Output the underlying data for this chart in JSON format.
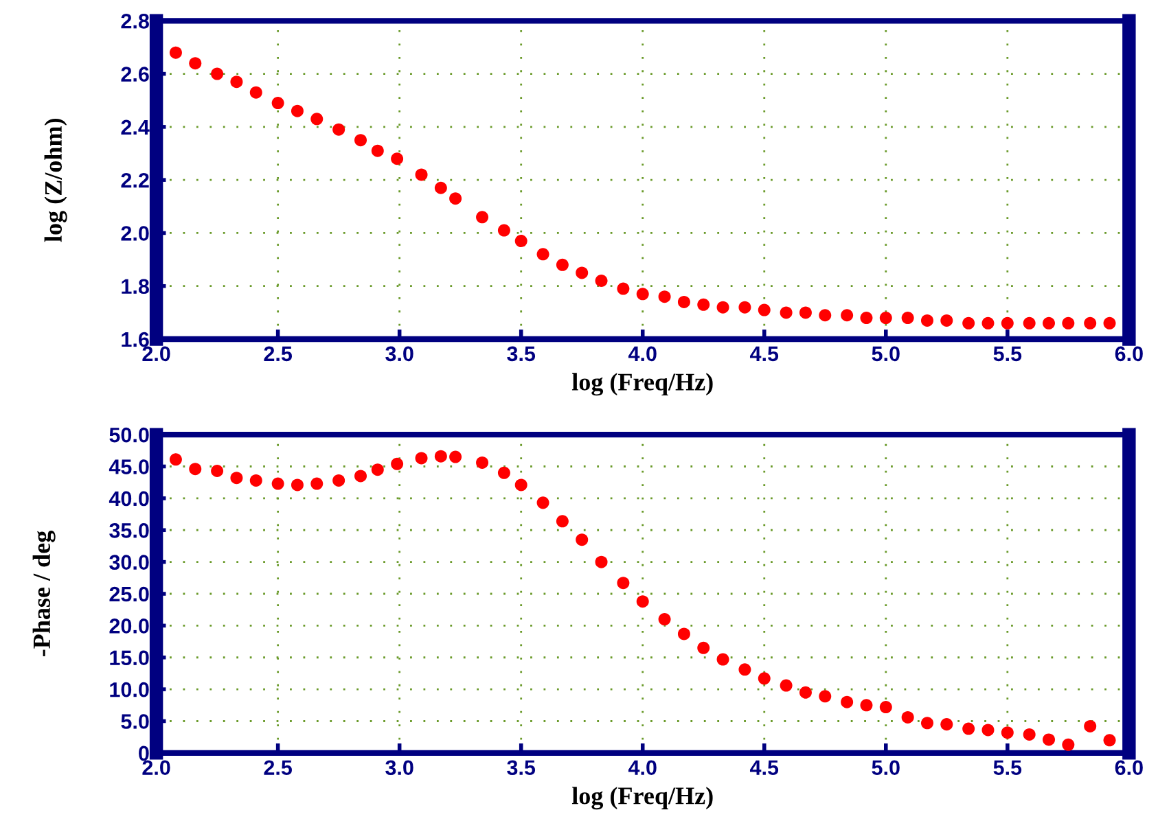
{
  "chart_data": [
    {
      "type": "scatter",
      "xlabel": "log (Freq/Hz)",
      "ylabel": "log (Z/ohm)",
      "marker": "circle",
      "grid": true,
      "xlim": [
        2.0,
        6.0
      ],
      "ylim": [
        1.6,
        2.8
      ],
      "xticks": [
        {
          "value": 2.0,
          "label": "2.0"
        },
        {
          "value": 2.5,
          "label": "2.5"
        },
        {
          "value": 3.0,
          "label": "3.0"
        },
        {
          "value": 3.5,
          "label": "3.5"
        },
        {
          "value": 4.0,
          "label": "4.0"
        },
        {
          "value": 4.5,
          "label": "4.5"
        },
        {
          "value": 5.0,
          "label": "5.0"
        },
        {
          "value": 5.5,
          "label": "5.5"
        },
        {
          "value": 6.0,
          "label": "6.0"
        }
      ],
      "yticks": [
        {
          "value": 1.6,
          "label": "1.6"
        },
        {
          "value": 1.8,
          "label": "1.8"
        },
        {
          "value": 2.0,
          "label": "2.0"
        },
        {
          "value": 2.2,
          "label": "2.2"
        },
        {
          "value": 2.4,
          "label": "2.4"
        },
        {
          "value": 2.6,
          "label": "2.6"
        },
        {
          "value": 2.8,
          "label": "2.8"
        }
      ],
      "series": [
        {
          "color": "#ff0000",
          "x": [
            2.08,
            2.16,
            2.25,
            2.33,
            2.41,
            2.5,
            2.58,
            2.66,
            2.75,
            2.84,
            2.91,
            2.99,
            3.09,
            3.17,
            3.23,
            3.34,
            3.43,
            3.5,
            3.59,
            3.67,
            3.75,
            3.83,
            3.92,
            4.0,
            4.09,
            4.17,
            4.25,
            4.33,
            4.42,
            4.5,
            4.59,
            4.67,
            4.75,
            4.84,
            4.92,
            5.0,
            5.09,
            5.17,
            5.25,
            5.34,
            5.42,
            5.5,
            5.59,
            5.67,
            5.75,
            5.84,
            5.92
          ],
          "values": [
            2.68,
            2.64,
            2.6,
            2.57,
            2.53,
            2.49,
            2.46,
            2.43,
            2.39,
            2.35,
            2.31,
            2.28,
            2.22,
            2.17,
            2.13,
            2.06,
            2.01,
            1.97,
            1.92,
            1.88,
            1.85,
            1.82,
            1.79,
            1.77,
            1.76,
            1.74,
            1.73,
            1.72,
            1.72,
            1.71,
            1.7,
            1.7,
            1.69,
            1.69,
            1.68,
            1.68,
            1.68,
            1.67,
            1.67,
            1.66,
            1.66,
            1.66,
            1.66,
            1.66,
            1.66,
            1.66,
            1.66
          ]
        }
      ]
    },
    {
      "type": "scatter",
      "xlabel": "log (Freq/Hz)",
      "ylabel": "-Phase / deg",
      "marker": "circle",
      "grid": true,
      "xlim": [
        2.0,
        6.0
      ],
      "ylim": [
        0,
        50.0
      ],
      "xticks": [
        {
          "value": 2.0,
          "label": "2.0"
        },
        {
          "value": 2.5,
          "label": "2.5"
        },
        {
          "value": 3.0,
          "label": "3.0"
        },
        {
          "value": 3.5,
          "label": "3.5"
        },
        {
          "value": 4.0,
          "label": "4.0"
        },
        {
          "value": 4.5,
          "label": "4.5"
        },
        {
          "value": 5.0,
          "label": "5.0"
        },
        {
          "value": 5.5,
          "label": "5.5"
        },
        {
          "value": 6.0,
          "label": "6.0"
        }
      ],
      "yticks": [
        0,
        {
          "value": 5,
          "label": "5.0"
        },
        {
          "value": 10,
          "label": "10.0"
        },
        {
          "value": 15,
          "label": "15.0"
        },
        {
          "value": 20,
          "label": "20.0"
        },
        {
          "value": 25,
          "label": "25.0"
        },
        {
          "value": 30,
          "label": "30.0"
        },
        {
          "value": 35,
          "label": "35.0"
        },
        {
          "value": 40,
          "label": "40.0"
        },
        {
          "value": 45,
          "label": "45.0"
        },
        {
          "value": 50,
          "label": "50.0"
        }
      ],
      "series": [
        {
          "color": "#ff0000",
          "x": [
            2.08,
            2.16,
            2.25,
            2.33,
            2.41,
            2.5,
            2.58,
            2.66,
            2.75,
            2.84,
            2.91,
            2.99,
            3.09,
            3.17,
            3.23,
            3.34,
            3.43,
            3.5,
            3.59,
            3.67,
            3.75,
            3.83,
            3.92,
            4.0,
            4.09,
            4.17,
            4.25,
            4.33,
            4.42,
            4.5,
            4.59,
            4.67,
            4.75,
            4.84,
            4.92,
            5.0,
            5.09,
            5.17,
            5.25,
            5.34,
            5.42,
            5.5,
            5.59,
            5.67,
            5.75,
            5.84,
            5.92
          ],
          "values": [
            46.1,
            44.6,
            44.3,
            43.2,
            42.8,
            42.3,
            42.1,
            42.3,
            42.8,
            43.5,
            44.5,
            45.4,
            46.3,
            46.6,
            46.5,
            45.6,
            44.0,
            42.1,
            39.3,
            36.4,
            33.5,
            30.0,
            26.7,
            23.8,
            21.0,
            18.7,
            16.5,
            14.7,
            13.1,
            11.7,
            10.6,
            9.5,
            8.9,
            8.0,
            7.5,
            7.2,
            5.6,
            4.7,
            4.5,
            3.8,
            3.6,
            3.2,
            2.9,
            2.1,
            1.3,
            4.2,
            2.0
          ]
        }
      ]
    }
  ]
}
